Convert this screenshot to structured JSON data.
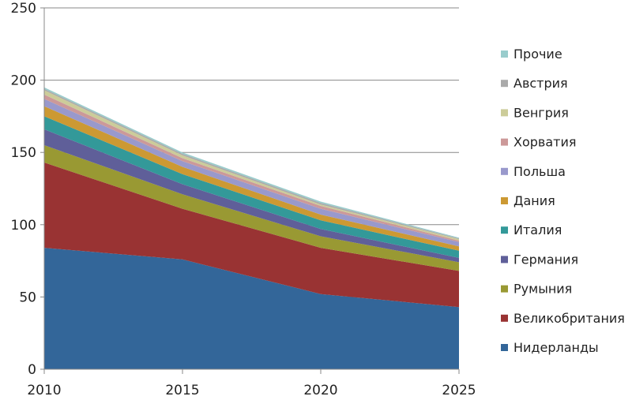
{
  "chart_data": {
    "type": "area",
    "stacked": true,
    "x": [
      2010,
      2015,
      2020,
      2025
    ],
    "xticks": [
      "2010",
      "2015",
      "2020",
      "2025"
    ],
    "yticks": [
      "0",
      "50",
      "100",
      "150",
      "200",
      "250"
    ],
    "ylim": [
      0,
      250
    ],
    "xlim": [
      2010,
      2025
    ],
    "grid": "horizontal",
    "legend_position": "right",
    "series": [
      {
        "name": "Нидерланды",
        "color": "#336699",
        "values": [
          84,
          76,
          52,
          43
        ]
      },
      {
        "name": "Великобритания",
        "color": "#993333",
        "values": [
          59,
          35,
          32,
          25
        ]
      },
      {
        "name": "Румыния",
        "color": "#999933",
        "values": [
          12,
          10,
          8,
          6
        ]
      },
      {
        "name": "Германия",
        "color": "#5f5f99",
        "values": [
          11,
          7,
          5,
          3
        ]
      },
      {
        "name": "Италия",
        "color": "#339999",
        "values": [
          9,
          7,
          6,
          5
        ]
      },
      {
        "name": "Дания",
        "color": "#cc9933",
        "values": [
          7,
          5,
          4,
          3
        ]
      },
      {
        "name": "Польша",
        "color": "#9999cc",
        "values": [
          5,
          4,
          4,
          3
        ]
      },
      {
        "name": "Хорватия",
        "color": "#cc9999",
        "values": [
          3,
          2,
          2,
          1
        ]
      },
      {
        "name": "Венгрия",
        "color": "#cccc99",
        "values": [
          3,
          2,
          1,
          1
        ]
      },
      {
        "name": "Австрия",
        "color": "#aaaaaa",
        "values": [
          1,
          1,
          1,
          0.5
        ]
      },
      {
        "name": "Прочие",
        "color": "#99cccc",
        "values": [
          1,
          1,
          1,
          0.5
        ]
      }
    ]
  }
}
